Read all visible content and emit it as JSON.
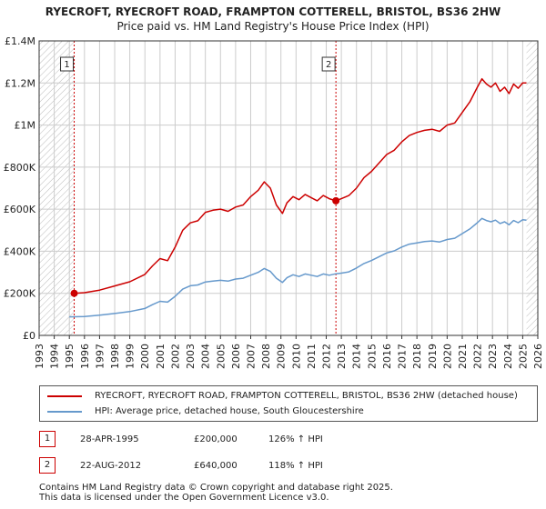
{
  "header": {
    "title": "RYECROFT, RYECROFT ROAD, FRAMPTON COTTERELL, BRISTOL, BS36 2HW",
    "subtitle": "Price paid vs. HM Land Registry's House Price Index (HPI)"
  },
  "colors": {
    "property": "#cc0000",
    "hpi": "#6699cc",
    "marker_border": "#cc0000",
    "grid": "#cccccc",
    "hatch": "#bbbbbb"
  },
  "chart_data": {
    "type": "line",
    "title": "Price paid vs. HM Land Registry's House Price Index (HPI)",
    "xlabel": "",
    "ylabel": "",
    "xlim": [
      1993,
      2026
    ],
    "ylim": [
      0,
      1400000
    ],
    "y_ticks": [
      {
        "value": 0,
        "label": "£0"
      },
      {
        "value": 200000,
        "label": "£200K"
      },
      {
        "value": 400000,
        "label": "£400K"
      },
      {
        "value": 600000,
        "label": "£600K"
      },
      {
        "value": 800000,
        "label": "£800K"
      },
      {
        "value": 1000000,
        "label": "£1M"
      },
      {
        "value": 1200000,
        "label": "£1.2M"
      },
      {
        "value": 1400000,
        "label": "£1.4M"
      }
    ],
    "x_ticks": [
      "1993",
      "1994",
      "1995",
      "1996",
      "1997",
      "1998",
      "1999",
      "2000",
      "2001",
      "2002",
      "2003",
      "2004",
      "2005",
      "2006",
      "2007",
      "2008",
      "2009",
      "2010",
      "2011",
      "2012",
      "2013",
      "2014",
      "2015",
      "2016",
      "2017",
      "2018",
      "2019",
      "2020",
      "2021",
      "2022",
      "2023",
      "2024",
      "2025",
      "2026"
    ],
    "hatched_ranges": [
      [
        1993,
        1995.32
      ],
      [
        2025.25,
        2026
      ]
    ],
    "grid": true,
    "series": [
      {
        "name": "RYECROFT, RYECROFT ROAD, FRAMPTON COTTERELL, BRISTOL, BS36 2HW (detached house)",
        "x": [
          1995.32,
          1996,
          1997,
          1998,
          1999,
          2000,
          2000.5,
          2001,
          2001.5,
          2002,
          2002.5,
          2003,
          2003.5,
          2004,
          2004.5,
          2005,
          2005.5,
          2006,
          2006.5,
          2007,
          2007.5,
          2007.9,
          2008.3,
          2008.7,
          2009.1,
          2009.4,
          2009.8,
          2010.2,
          2010.6,
          2011,
          2011.4,
          2011.8,
          2012.2,
          2012.64,
          2013,
          2013.5,
          2014,
          2014.5,
          2015,
          2015.5,
          2016,
          2016.5,
          2017,
          2017.5,
          2018,
          2018.5,
          2019,
          2019.5,
          2020,
          2020.5,
          2021,
          2021.5,
          2022,
          2022.3,
          2022.6,
          2022.9,
          2023.2,
          2023.5,
          2023.8,
          2024.1,
          2024.4,
          2024.7,
          2025,
          2025.25
        ],
        "y": [
          200000,
          203000,
          215000,
          235000,
          255000,
          290000,
          330000,
          365000,
          355000,
          420000,
          500000,
          535000,
          545000,
          585000,
          595000,
          600000,
          590000,
          610000,
          620000,
          660000,
          690000,
          730000,
          700000,
          620000,
          580000,
          630000,
          660000,
          645000,
          670000,
          655000,
          640000,
          665000,
          650000,
          640000,
          650000,
          665000,
          700000,
          750000,
          780000,
          820000,
          860000,
          880000,
          920000,
          950000,
          965000,
          975000,
          980000,
          970000,
          1000000,
          1010000,
          1060000,
          1110000,
          1180000,
          1220000,
          1195000,
          1180000,
          1200000,
          1160000,
          1180000,
          1150000,
          1195000,
          1175000,
          1200000,
          1200000
        ]
      },
      {
        "name": "HPI: Average price, detached house, South Gloucestershire",
        "x": [
          1995,
          1996,
          1997,
          1998,
          1999,
          2000,
          2000.5,
          2001,
          2001.5,
          2002,
          2002.5,
          2003,
          2003.5,
          2004,
          2004.5,
          2005,
          2005.5,
          2006,
          2006.5,
          2007,
          2007.5,
          2007.9,
          2008.3,
          2008.7,
          2009.1,
          2009.4,
          2009.8,
          2010.2,
          2010.6,
          2011,
          2011.4,
          2011.8,
          2012.2,
          2012.64,
          2013,
          2013.5,
          2014,
          2014.5,
          2015,
          2015.5,
          2016,
          2016.5,
          2017,
          2017.5,
          2018,
          2018.5,
          2019,
          2019.5,
          2020,
          2020.5,
          2021,
          2021.5,
          2022,
          2022.3,
          2022.6,
          2022.9,
          2023.2,
          2023.5,
          2023.8,
          2024.1,
          2024.4,
          2024.7,
          2025,
          2025.25
        ],
        "y": [
          88000,
          90000,
          96000,
          104000,
          113000,
          128000,
          146000,
          162000,
          158000,
          186000,
          220000,
          236000,
          240000,
          254000,
          258000,
          262000,
          258000,
          268000,
          272000,
          286000,
          300000,
          318000,
          304000,
          272000,
          252000,
          274000,
          288000,
          280000,
          292000,
          286000,
          280000,
          292000,
          286000,
          293000,
          296000,
          302000,
          320000,
          342000,
          356000,
          374000,
          392000,
          402000,
          420000,
          434000,
          440000,
          446000,
          449000,
          444000,
          456000,
          462000,
          484000,
          506000,
          536000,
          556000,
          546000,
          540000,
          548000,
          532000,
          540000,
          526000,
          546000,
          536000,
          550000,
          548000
        ]
      }
    ],
    "transactions": [
      {
        "id": "1",
        "date": "28-APR-1995",
        "x": 1995.32,
        "price": 200000,
        "price_label": "£200,000",
        "hpi_change": "126% ↑ HPI"
      },
      {
        "id": "2",
        "date": "22-AUG-2012",
        "x": 2012.64,
        "price": 640000,
        "price_label": "£640,000",
        "hpi_change": "118% ↑ HPI"
      }
    ]
  },
  "legend": {
    "property_label": "RYECROFT, RYECROFT ROAD, FRAMPTON COTTERELL, BRISTOL, BS36 2HW (detached house)",
    "hpi_label": "HPI: Average price, detached house, South Gloucestershire"
  },
  "footer": {
    "line1": "Contains HM Land Registry data © Crown copyright and database right 2025.",
    "line2": "This data is licensed under the Open Government Licence v3.0."
  }
}
